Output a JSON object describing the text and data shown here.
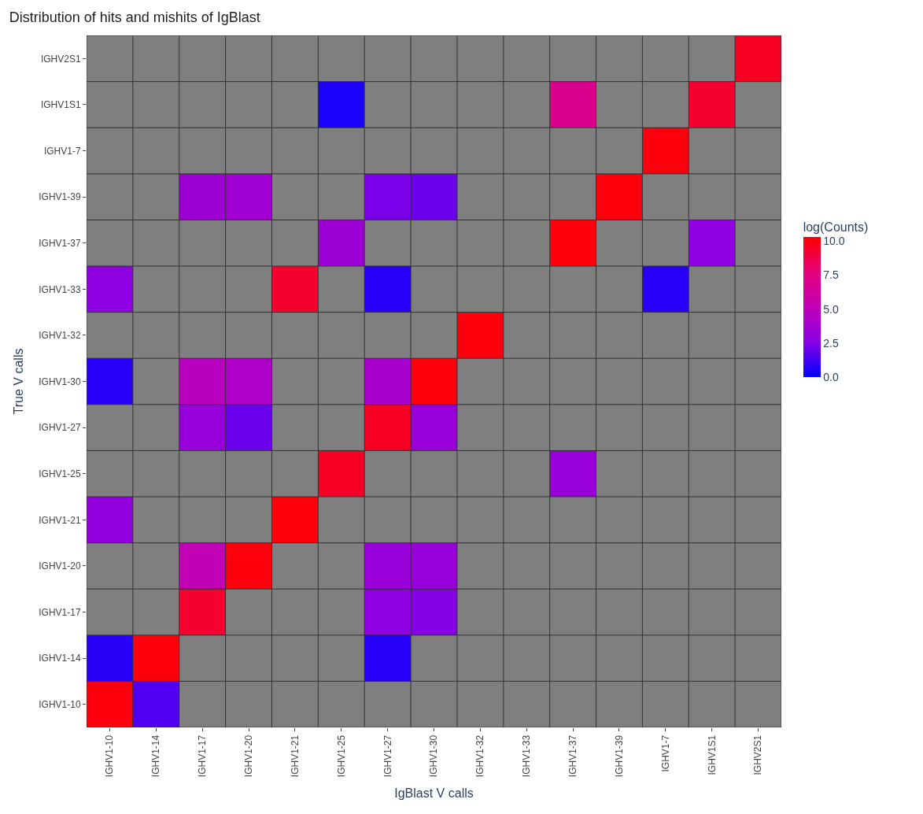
{
  "chart_data": {
    "type": "heatmap",
    "title": "Distribution of hits and mishits of IgBlast",
    "xlabel": "IgBlast V calls",
    "ylabel": "True V calls",
    "clabel": "log(Counts)",
    "categories": [
      "IGHV1-10",
      "IGHV1-14",
      "IGHV1-17",
      "IGHV1-20",
      "IGHV1-21",
      "IGHV1-25",
      "IGHV1-27",
      "IGHV1-30",
      "IGHV1-32",
      "IGHV1-33",
      "IGHV1-37",
      "IGHV1-39",
      "IGHV1-7",
      "IGHV1S1",
      "IGHV2S1"
    ],
    "y_categories": [
      "IGHV2S1",
      "IGHV1S1",
      "IGHV1-7",
      "IGHV1-39",
      "IGHV1-37",
      "IGHV1-33",
      "IGHV1-32",
      "IGHV1-30",
      "IGHV1-27",
      "IGHV1-25",
      "IGHV1-21",
      "IGHV1-20",
      "IGHV1-17",
      "IGHV1-14",
      "IGHV1-10"
    ],
    "cells": [
      [
        null,
        null,
        null,
        null,
        null,
        null,
        null,
        null,
        null,
        null,
        null,
        null,
        null,
        null,
        9.5
      ],
      [
        null,
        null,
        null,
        null,
        null,
        0.5,
        null,
        null,
        null,
        null,
        7,
        null,
        null,
        9.3,
        null
      ],
      [
        null,
        null,
        null,
        null,
        null,
        null,
        null,
        null,
        null,
        null,
        null,
        null,
        10,
        null,
        null
      ],
      [
        null,
        null,
        3.5,
        3.7,
        null,
        null,
        2.3,
        2,
        null,
        null,
        null,
        10,
        null,
        null,
        null
      ],
      [
        null,
        null,
        null,
        null,
        null,
        3.5,
        null,
        null,
        null,
        null,
        10,
        null,
        null,
        2.8,
        null
      ],
      [
        2.8,
        null,
        null,
        null,
        9.3,
        null,
        0.7,
        null,
        null,
        null,
        null,
        null,
        0.7,
        null,
        null
      ],
      [
        null,
        null,
        null,
        null,
        null,
        null,
        null,
        null,
        10,
        null,
        null,
        null,
        null,
        null,
        null
      ],
      [
        0.7,
        null,
        4.8,
        4.3,
        null,
        null,
        4,
        10,
        null,
        null,
        null,
        null,
        null,
        null,
        null
      ],
      [
        null,
        null,
        3.2,
        2,
        null,
        null,
        9.5,
        3.3,
        null,
        null,
        null,
        null,
        null,
        null,
        null
      ],
      [
        null,
        null,
        null,
        null,
        null,
        9.5,
        null,
        null,
        null,
        null,
        3.3,
        null,
        null,
        null,
        null
      ],
      [
        3,
        null,
        null,
        null,
        10,
        null,
        null,
        null,
        null,
        null,
        null,
        null,
        null,
        null,
        null
      ],
      [
        null,
        null,
        5.3,
        10,
        null,
        null,
        3.3,
        3.3,
        null,
        null,
        null,
        null,
        null,
        null,
        null
      ],
      [
        null,
        null,
        9.3,
        null,
        null,
        null,
        2.8,
        2.5,
        null,
        null,
        null,
        null,
        null,
        null,
        null
      ],
      [
        0.8,
        10,
        null,
        null,
        null,
        null,
        0.7,
        null,
        null,
        null,
        null,
        null,
        null,
        null,
        null
      ],
      [
        10,
        1.5,
        null,
        null,
        null,
        null,
        null,
        null,
        null,
        null,
        null,
        null,
        null,
        null,
        null
      ]
    ],
    "clim": [
      0,
      10.3
    ],
    "cticks": [
      {
        "value": 0,
        "label": "0.0"
      },
      2.5,
      {
        "value": 5,
        "label": "5.0"
      },
      7.5,
      {
        "value": 10,
        "label": "10.0"
      }
    ]
  }
}
